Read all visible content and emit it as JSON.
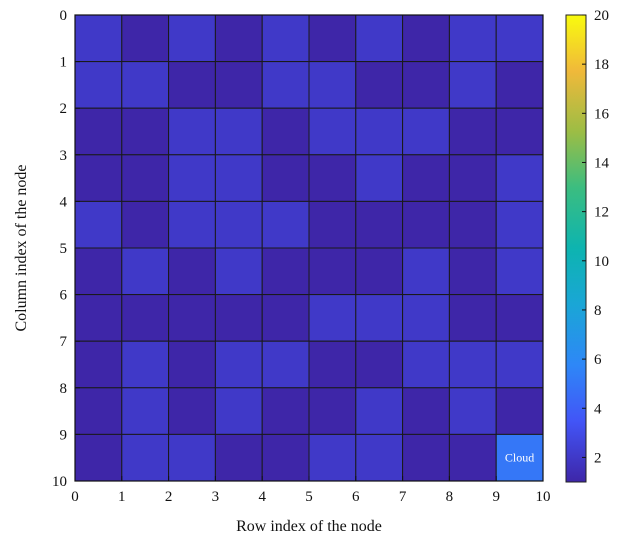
{
  "chart_data": {
    "type": "heatmap",
    "title": "",
    "xlabel": "Row index of the node",
    "ylabel": "Column index of the node",
    "x_ticks": [
      "0",
      "1",
      "2",
      "3",
      "4",
      "5",
      "6",
      "7",
      "8",
      "9",
      "10"
    ],
    "y_ticks": [
      "0",
      "1",
      "2",
      "3",
      "4",
      "5",
      "6",
      "7",
      "8",
      "9",
      "10"
    ],
    "xlim": [
      0,
      10
    ],
    "ylim": [
      0,
      10
    ],
    "grid": true,
    "colorbar": {
      "min": 1,
      "max": 20,
      "ticks": [
        "2",
        "4",
        "6",
        "8",
        "10",
        "12",
        "14",
        "16",
        "18",
        "20"
      ],
      "colormap": "parula"
    },
    "values": [
      [
        2,
        1,
        2,
        1,
        2,
        1,
        2,
        1,
        2,
        2
      ],
      [
        2,
        2,
        1,
        1,
        2,
        2,
        1,
        1,
        2,
        1
      ],
      [
        1,
        1,
        2,
        2,
        1,
        2,
        2,
        2,
        1,
        1
      ],
      [
        1,
        1,
        2,
        2,
        1,
        1,
        2,
        1,
        1,
        2
      ],
      [
        2,
        1,
        2,
        2,
        2,
        1,
        1,
        1,
        1,
        2
      ],
      [
        1,
        2,
        1,
        2,
        1,
        1,
        1,
        2,
        1,
        2
      ],
      [
        1,
        1,
        1,
        1,
        1,
        2,
        2,
        2,
        1,
        1
      ],
      [
        1,
        2,
        1,
        2,
        2,
        1,
        1,
        2,
        2,
        2
      ],
      [
        1,
        2,
        1,
        2,
        1,
        1,
        2,
        1,
        2,
        1
      ],
      [
        1,
        2,
        2,
        1,
        1,
        2,
        2,
        1,
        1,
        5
      ]
    ],
    "annotations": [
      {
        "row": 9,
        "col": 9,
        "text": "Cloud"
      }
    ]
  }
}
